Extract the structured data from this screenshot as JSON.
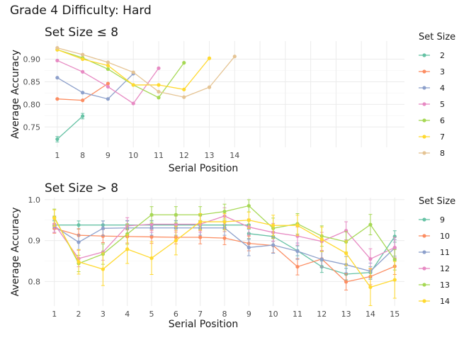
{
  "suptitle": "Grade 4 Difficulty: Hard",
  "chart_data": [
    {
      "type": "line",
      "title": "Set Size ≤ 8",
      "xlabel": "Serial Position",
      "ylabel": "Average Accuracy",
      "xlim": [
        0.5,
        14.7
      ],
      "ylim": [
        0.705,
        0.94
      ],
      "xticks": [
        1,
        2,
        3,
        4,
        5,
        6,
        7,
        8,
        9,
        10,
        11,
        12,
        13,
        14
      ],
      "xtick_labels": [
        "1",
        "8",
        "9",
        "10",
        "11",
        "12",
        "13",
        "14"
      ],
      "xtick_label_positions": [
        1,
        2,
        3,
        4,
        5,
        6,
        7,
        8
      ],
      "yticks": [
        0.75,
        0.8,
        0.85,
        0.9
      ],
      "ytick_labels": [
        "0.75",
        "0.80",
        "0.85",
        "0.90"
      ],
      "grid": true,
      "legend_title": "Set Size",
      "legend_position": "right",
      "series": [
        {
          "name": "2",
          "color": "#66c2a5",
          "x": [
            1,
            2
          ],
          "y": [
            0.723,
            0.774
          ],
          "err": [
            0.006,
            0.006
          ]
        },
        {
          "name": "3",
          "color": "#fc8d62",
          "x": [
            1,
            2,
            3
          ],
          "y": [
            0.812,
            0.809,
            0.846
          ],
          "err": [
            0,
            0,
            0
          ]
        },
        {
          "name": "4",
          "color": "#8da0cb",
          "x": [
            1,
            2,
            3,
            4
          ],
          "y": [
            0.859,
            0.826,
            0.812,
            0.868
          ],
          "err": [
            0,
            0,
            0,
            0
          ]
        },
        {
          "name": "5",
          "color": "#e78ac3",
          "x": [
            1,
            2,
            3,
            4,
            5
          ],
          "y": [
            0.897,
            0.872,
            0.839,
            0.802,
            0.88
          ],
          "err": [
            0,
            0,
            0,
            0,
            0
          ]
        },
        {
          "name": "6",
          "color": "#a6d854",
          "x": [
            1,
            2,
            3,
            4,
            5,
            6
          ],
          "y": [
            0.921,
            0.903,
            0.878,
            0.843,
            0.815,
            0.892
          ],
          "err": [
            0,
            0,
            0,
            0,
            0,
            0
          ]
        },
        {
          "name": "7",
          "color": "#ffd92f",
          "x": [
            1,
            2,
            3,
            4,
            5,
            6,
            7
          ],
          "y": [
            0.921,
            0.9,
            0.886,
            0.843,
            0.843,
            0.833,
            0.902
          ],
          "err": [
            0,
            0,
            0,
            0,
            0,
            0,
            0
          ]
        },
        {
          "name": "8",
          "color": "#e5c494",
          "x": [
            1,
            2,
            3,
            4,
            5,
            6,
            7,
            8
          ],
          "y": [
            0.925,
            0.91,
            0.893,
            0.871,
            0.828,
            0.816,
            0.838,
            0.906
          ],
          "err": [
            0,
            0,
            0,
            0,
            0,
            0,
            0,
            0
          ]
        }
      ]
    },
    {
      "type": "line",
      "title": "Set Size > 8",
      "xlabel": "Serial Position",
      "ylabel": "Average Accuracy",
      "xlim": [
        0.6,
        15.4
      ],
      "ylim": [
        0.74,
        1.005
      ],
      "xticks": [
        1,
        2,
        3,
        4,
        5,
        6,
        7,
        8,
        9,
        10,
        11,
        12,
        13,
        14,
        15
      ],
      "xtick_labels": [
        "1",
        "2",
        "3",
        "4",
        "5",
        "6",
        "7",
        "8",
        "9",
        "10",
        "11",
        "12",
        "13",
        "14",
        "15"
      ],
      "xtick_label_positions": [
        1,
        2,
        3,
        4,
        5,
        6,
        7,
        8,
        9,
        10,
        11,
        12,
        13,
        14,
        15
      ],
      "yticks": [
        0.8,
        0.9,
        1.0
      ],
      "ytick_labels": [
        "0.8",
        "0.9",
        "1.0"
      ],
      "grid": true,
      "legend_title": "Set Size",
      "legend_position": "right",
      "series": [
        {
          "name": "9",
          "color": "#66c2a5",
          "x": [
            1,
            2,
            3,
            4,
            5,
            6,
            7,
            8,
            9
          ],
          "y": [
            0.938,
            0.938,
            0.938,
            0.938,
            0.938,
            0.938,
            0.938,
            0.938,
            0.938
          ],
          "err": [
            0.01,
            0.01,
            0.01,
            0.01,
            0.01,
            0.01,
            0.01,
            0.01,
            0.01
          ],
          "x2": [
            9,
            10,
            11,
            12,
            13,
            14,
            15
          ],
          "y2": [
            0.917,
            0.91,
            0.875,
            0.836,
            0.818,
            0.822,
            0.91
          ],
          "err2": [
            0.012,
            0.012,
            0.012,
            0.014,
            0.014,
            0.014,
            0.014
          ]
        },
        {
          "name": "10",
          "color": "#fc8d62",
          "x": [
            1,
            2,
            3,
            4,
            5,
            6,
            7,
            8,
            9,
            10,
            11,
            12,
            13,
            14,
            15
          ],
          "y": [
            0.93,
            0.913,
            0.911,
            0.91,
            0.909,
            0.908,
            0.908,
            0.906,
            0.893,
            0.888,
            0.836,
            0.855,
            0.799,
            0.812,
            0.837
          ],
          "err": [
            0.012,
            0.016,
            0.016,
            0.016,
            0.016,
            0.016,
            0.016,
            0.016,
            0.018,
            0.018,
            0.02,
            0.02,
            0.02,
            0.02,
            0.02
          ]
        },
        {
          "name": "11",
          "color": "#8da0cb",
          "x": [
            1,
            2,
            3,
            4,
            5,
            6,
            7,
            8,
            9,
            10,
            11,
            12,
            13,
            14,
            15
          ],
          "y": [
            0.935,
            0.896,
            0.93,
            0.931,
            0.931,
            0.931,
            0.931,
            0.931,
            0.883,
            0.889,
            0.874,
            0.854,
            0.841,
            0.825,
            0.882
          ],
          "err": [
            0.015,
            0.018,
            0.018,
            0.018,
            0.018,
            0.018,
            0.018,
            0.018,
            0.02,
            0.02,
            0.02,
            0.02,
            0.02,
            0.02,
            0.02
          ]
        },
        {
          "name": "12",
          "color": "#e78ac3",
          "x": [
            1,
            2,
            3,
            4,
            5,
            6,
            7,
            8,
            9,
            10,
            11,
            12,
            13,
            14,
            15
          ],
          "y": [
            0.94,
            0.856,
            0.872,
            0.936,
            0.94,
            0.94,
            0.94,
            0.96,
            0.933,
            0.92,
            0.911,
            0.898,
            0.924,
            0.855,
            0.883
          ],
          "err": [
            0.02,
            0.02,
            0.02,
            0.02,
            0.02,
            0.02,
            0.02,
            0.02,
            0.02,
            0.022,
            0.022,
            0.022,
            0.022,
            0.025,
            0.025
          ]
        },
        {
          "name": "13",
          "color": "#a6d854",
          "x": [
            1,
            2,
            3,
            4,
            5,
            6,
            7,
            8,
            9,
            10,
            11,
            12,
            13,
            14,
            15
          ],
          "y": [
            0.957,
            0.844,
            0.867,
            0.916,
            0.963,
            0.963,
            0.963,
            0.971,
            0.985,
            0.93,
            0.941,
            0.911,
            0.897,
            0.939,
            0.853
          ],
          "err": [
            0.02,
            0.02,
            0.025,
            0.025,
            0.02,
            0.02,
            0.02,
            0.018,
            0.015,
            0.025,
            0.025,
            0.025,
            0.025,
            0.025,
            0.025
          ]
        },
        {
          "name": "14",
          "color": "#ffd92f",
          "x": [
            1,
            2,
            3,
            4,
            5,
            6,
            7,
            8,
            9,
            10,
            11,
            12,
            13,
            14,
            15
          ],
          "y": [
            0.955,
            0.848,
            0.83,
            0.879,
            0.857,
            0.9,
            0.946,
            0.946,
            0.95,
            0.937,
            0.937,
            0.903,
            0.869,
            0.786,
            0.804
          ],
          "err": [
            0.02,
            0.03,
            0.04,
            0.035,
            0.04,
            0.035,
            0.02,
            0.02,
            0.02,
            0.025,
            0.025,
            0.03,
            0.03,
            0.045,
            0.045
          ]
        }
      ]
    }
  ]
}
